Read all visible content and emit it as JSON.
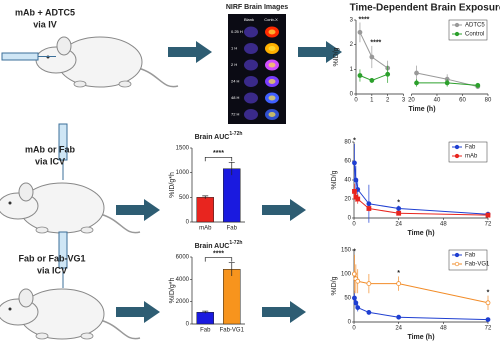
{
  "row_labels": [
    [
      "mAb + ADTC5",
      "via IV"
    ],
    [
      "mAb or Fab",
      "via ICV"
    ],
    [
      "Fab or Fab-VG1",
      "via ICV"
    ]
  ],
  "nirf": {
    "title": "NIRF Brain Images",
    "columns": [
      "Blank",
      "Conb-X"
    ],
    "rows": [
      "0.25 H",
      "1 H",
      "2 H",
      "24 H",
      "48 H",
      "72 H"
    ]
  },
  "chart_data": [
    {
      "type": "line",
      "title": "Time-Dependent Brain Exposure",
      "x_label": "Time (h)",
      "y_label": "%ID/g",
      "xlim": [
        0,
        80
      ],
      "xsegments": [
        [
          0,
          3
        ],
        [
          20,
          80
        ]
      ],
      "xticks": [
        0,
        1,
        2,
        3,
        20,
        40,
        60,
        80
      ],
      "ylim": [
        0,
        3
      ],
      "yticks": [
        0,
        1,
        2,
        3
      ],
      "legend": "upper right",
      "x": [
        0.25,
        1,
        2,
        24,
        48,
        72
      ],
      "series": [
        {
          "name": "ADTC5",
          "color": "#999999",
          "values": [
            2.5,
            1.5,
            1.05,
            0.85,
            0.6,
            0.3
          ],
          "errors": [
            0.4,
            0.45,
            0.3,
            0.3,
            0.2,
            0.1
          ]
        },
        {
          "name": "Control",
          "color": "#2ca02c",
          "values": [
            0.75,
            0.55,
            0.8,
            0.45,
            0.45,
            0.35
          ],
          "errors": [
            0.25,
            0.1,
            0.35,
            0.15,
            0.15,
            0.1
          ]
        }
      ],
      "annotations": [
        {
          "x": 0.25,
          "text": "****"
        },
        {
          "x": 1,
          "text": "****"
        }
      ]
    },
    {
      "type": "bar",
      "title": "Brain AUC",
      "title_superscript": "1-72h",
      "y_label": "%ID/g*h",
      "categories": [
        "mAb",
        "Fab"
      ],
      "values": [
        500,
        1080
      ],
      "errors": [
        30,
        130
      ],
      "colors": [
        "#e8251f",
        "#1a1adf"
      ],
      "ylim": [
        0,
        1500
      ],
      "yticks": [
        0,
        500,
        1000,
        1500
      ],
      "annotations": [
        {
          "text": "****"
        }
      ]
    },
    {
      "type": "line",
      "x_label": "Time (h)",
      "y_label": "%ID/g",
      "xlim": [
        0,
        72
      ],
      "xticks": [
        0,
        24,
        48,
        72
      ],
      "ylim": [
        0,
        80
      ],
      "yticks": [
        0,
        20,
        40,
        60,
        80
      ],
      "legend": "upper right",
      "x": [
        0.25,
        1,
        2,
        8,
        24,
        72
      ],
      "series": [
        {
          "name": "Fab",
          "color": "#1f3fd1",
          "marker": "filled",
          "values": [
            58,
            40,
            30,
            15,
            10,
            4
          ],
          "errors": [
            20,
            15,
            10,
            20,
            3,
            2
          ]
        },
        {
          "name": "mAb",
          "color": "#e8251f",
          "marker": "square",
          "values": [
            28,
            22,
            20,
            10,
            5,
            3
          ],
          "errors": [
            8,
            5,
            5,
            3,
            2,
            1
          ]
        }
      ],
      "annotations": [
        {
          "x": 0.25,
          "text": "*"
        },
        {
          "x": 24,
          "text": "*"
        }
      ]
    },
    {
      "type": "bar",
      "title": "Brain AUC",
      "title_superscript": "1-72h",
      "y_label": "%ID/g*h",
      "categories": [
        "Fab",
        "Fab-VG1"
      ],
      "values": [
        1050,
        4900
      ],
      "errors": [
        100,
        600
      ],
      "colors": [
        "#1a1adf",
        "#f7941d"
      ],
      "ylim": [
        0,
        6000
      ],
      "yticks": [
        0,
        2000,
        4000,
        6000
      ],
      "annotations": [
        {
          "text": "****"
        }
      ]
    },
    {
      "type": "line",
      "x_label": "Time (h)",
      "y_label": "%ID/g",
      "xlim": [
        0,
        72
      ],
      "xticks": [
        0,
        24,
        48,
        72
      ],
      "ylim": [
        0,
        150
      ],
      "yticks": [
        0,
        50,
        100,
        150
      ],
      "legend": "upper right",
      "x": [
        0.25,
        1,
        2,
        8,
        24,
        72
      ],
      "series": [
        {
          "name": "Fab",
          "color": "#1f3fd1",
          "marker": "filled",
          "values": [
            50,
            40,
            30,
            20,
            10,
            5
          ],
          "errors": [
            15,
            10,
            8,
            5,
            3,
            2
          ]
        },
        {
          "name": "Fab-VG1",
          "color": "#f28c28",
          "marker": "open",
          "values": [
            100,
            90,
            85,
            80,
            80,
            40
          ],
          "errors": [
            40,
            30,
            25,
            20,
            15,
            15
          ]
        }
      ],
      "annotations": [
        {
          "x": 0.25,
          "text": "*"
        },
        {
          "x": 24,
          "text": "*"
        },
        {
          "x": 72,
          "text": "*"
        }
      ]
    }
  ]
}
